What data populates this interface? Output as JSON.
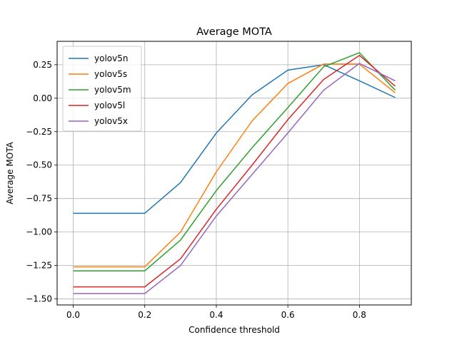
{
  "chart_data": {
    "type": "line",
    "title": "Average MOTA",
    "xlabel": "Confidence threshold",
    "ylabel": "Average MOTA",
    "x": [
      0.0,
      0.2,
      0.3,
      0.4,
      0.5,
      0.6,
      0.7,
      0.8,
      0.9
    ],
    "xlim": [
      -0.045,
      0.945
    ],
    "ylim": [
      -1.545,
      0.425
    ],
    "xticks": [
      0.0,
      0.2,
      0.4,
      0.6,
      0.8
    ],
    "xtick_labels": [
      "0.0",
      "0.2",
      "0.4",
      "0.6",
      "0.8"
    ],
    "yticks": [
      -1.5,
      -1.25,
      -1.0,
      -0.75,
      -0.5,
      -0.25,
      0.0,
      0.25
    ],
    "ytick_labels": [
      "−1.50",
      "−1.25",
      "−1.00",
      "−0.75",
      "−0.50",
      "−0.25",
      "0.00",
      "0.25"
    ],
    "grid": true,
    "legend_position": "top-left",
    "series": [
      {
        "name": "yolov5n",
        "color": "#1f77b4",
        "values": [
          -0.86,
          -0.86,
          -0.63,
          -0.26,
          0.025,
          0.21,
          0.25,
          0.13,
          0.005
        ]
      },
      {
        "name": "yolov5s",
        "color": "#ff7f0e",
        "values": [
          -1.26,
          -1.26,
          -1.0,
          -0.55,
          -0.17,
          0.11,
          0.255,
          0.255,
          0.04
        ]
      },
      {
        "name": "yolov5m",
        "color": "#2ca02c",
        "values": [
          -1.29,
          -1.29,
          -1.06,
          -0.69,
          -0.37,
          -0.07,
          0.235,
          0.34,
          0.06
        ]
      },
      {
        "name": "yolov5l",
        "color": "#d62728",
        "values": [
          -1.41,
          -1.41,
          -1.2,
          -0.83,
          -0.5,
          -0.16,
          0.14,
          0.32,
          0.09
        ]
      },
      {
        "name": "yolov5x",
        "color": "#9467bd",
        "values": [
          -1.46,
          -1.46,
          -1.25,
          -0.88,
          -0.57,
          -0.26,
          0.06,
          0.26,
          0.13
        ]
      }
    ]
  }
}
